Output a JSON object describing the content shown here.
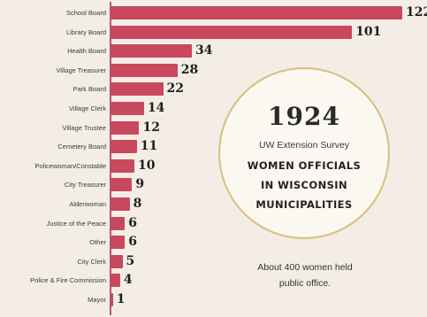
{
  "chart_data": {
    "type": "bar",
    "orientation": "horizontal",
    "categories": [
      "School Board",
      "Library Board",
      "Health Board",
      "Village Treasurer",
      "Park Board",
      "Village Clerk",
      "Village Trustee",
      "Cemetery Board",
      "Policewoman/Constable",
      "City Treasurer",
      "Alderwoman",
      "Justice of the Peace",
      "Other",
      "City Clerk",
      "Police & Fire Commission",
      "Mayor"
    ],
    "values": [
      122,
      101,
      34,
      28,
      22,
      14,
      12,
      11,
      10,
      9,
      8,
      6,
      6,
      5,
      4,
      1
    ],
    "xlim": [
      0,
      122
    ],
    "grid": false,
    "bar_color": "#c8485d"
  },
  "info": {
    "year": "1924",
    "survey": "UW Extension Survey",
    "headline_lines": [
      "WOMEN OFFICIALS",
      "IN WISCONSIN",
      "MUNICIPALITIES"
    ],
    "note_lines": [
      "About 400 women held",
      "public office."
    ]
  },
  "colors": {
    "background": "#f3ede6",
    "bar": "#c8485d",
    "circle_border": "#d6c17a"
  }
}
